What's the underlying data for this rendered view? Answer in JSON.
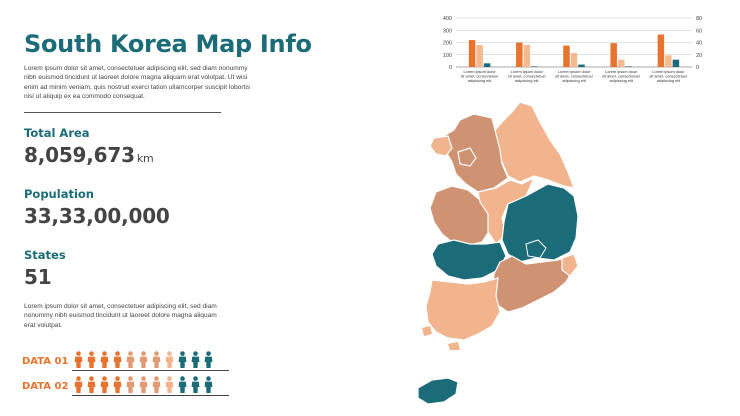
{
  "title": "South Korea Map Info",
  "intro": "Lorem ipsum dolor sit amet, consectetuer adipiscing elit, sed diam nonummy nibh euismod tincidunt ut laoreet dolore magna aliquam erat volutpat. Ut wisi enim ad minim veniam, quis nostrud exerci tation ullamcorper suscipit lobortis nisl ut aliquip ex ea commodo consequat.",
  "stats": {
    "total_area": {
      "label": "Total Area",
      "value": "8,059,673",
      "unit": "km"
    },
    "population": {
      "label": "Population",
      "value": "33,33,00,000"
    },
    "states": {
      "label": "States",
      "value": "51"
    }
  },
  "note": "Lorem ipsum dolor sit amet, consectetuer adipiscing elit, sed diam nonummy nibh euismod tincidunt ut laoreet dolore magna aliquam erat volutpat.",
  "people_rows": [
    {
      "label": "DATA 01",
      "colors": [
        "#e8732f",
        "#e8732f",
        "#e8732f",
        "#e8732f",
        "#e09a74",
        "#e09a74",
        "#e09a74",
        "#f2b48c",
        "#1c6b78",
        "#1c6b78",
        "#1c6b78"
      ]
    },
    {
      "label": "DATA 02",
      "colors": [
        "#e8732f",
        "#e8732f",
        "#e8732f",
        "#e8732f",
        "#e09a74",
        "#e09a74",
        "#e09a74",
        "#f2b48c",
        "#1c6b78",
        "#1c6b78",
        "#1c6b78"
      ]
    }
  ],
  "colors": {
    "teal": "#1c6b78",
    "orange": "#e8732f",
    "peach": "#f2b48c",
    "tan": "#cf9272"
  },
  "chart_data": {
    "type": "bar",
    "title": "",
    "categories": [
      "Lorem ipsum dolor sit amet, consectetuer adipiscing elit",
      "Lorem ipsum dolor sit amet, consectetuer adipiscing elit",
      "Lorem ipsum dolor sit amet, consectetuer adipiscing elit",
      "Lorem ipsum dolor sit amet, consectetuer adipiscing elit",
      "Lorem ipsum dolor sit amet, consectetuer adipiscing elit"
    ],
    "series": [
      {
        "values": [
          220,
          200,
          175,
          195,
          265
        ],
        "color": "#e8732f"
      },
      {
        "values": [
          180,
          180,
          115,
          60,
          95
        ],
        "color": "#f7b98f"
      },
      {
        "values": [
          30,
          5,
          20,
          5,
          60
        ],
        "color": "#1c6b78"
      }
    ],
    "ylim": [
      0,
      400
    ],
    "yticks": [
      "400",
      "300",
      "200",
      "100",
      "0"
    ],
    "y2ticks": [
      "80",
      "60",
      "40",
      "20",
      "0"
    ],
    "grid": true
  }
}
